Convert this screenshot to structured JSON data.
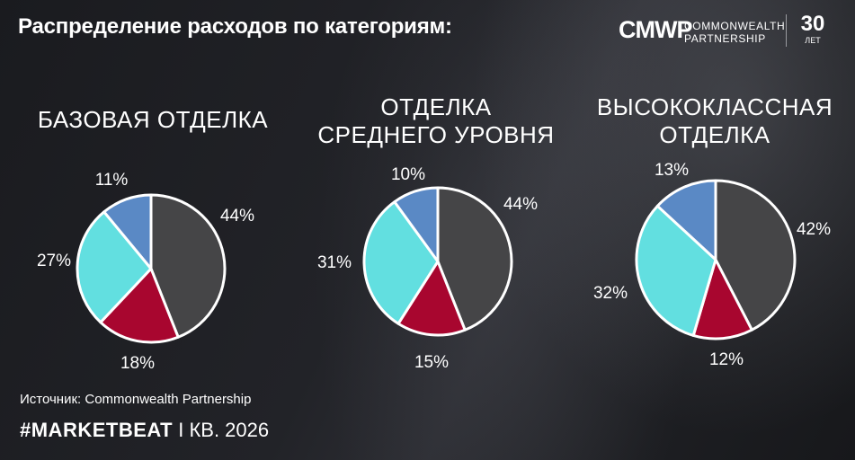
{
  "header": {
    "title": "Распределение расходов по категориям:"
  },
  "logo": {
    "mark": "CMWP",
    "line1": "COMMONWEALTH",
    "line2": "PARTNERSHIP",
    "years_number": "30",
    "years_word": "ЛЕТ"
  },
  "colors": {
    "dark_gray": "#454547",
    "crimson": "#a8062f",
    "cyan": "#62dfe0",
    "steel_blue": "#5a89c5",
    "outline": "#ffffff"
  },
  "chart_data": [
    {
      "type": "pie",
      "title": "БАЗОВАЯ ОТДЕЛКА",
      "values": [
        44,
        18,
        27,
        11
      ],
      "labels": [
        "44%",
        "18%",
        "27%",
        "11%"
      ],
      "colors": [
        "#454547",
        "#a8062f",
        "#62dfe0",
        "#5a89c5"
      ]
    },
    {
      "type": "pie",
      "title": "ОТДЕЛКА\nСРЕДНЕГО УРОВНЯ",
      "values": [
        44,
        15,
        31,
        10
      ],
      "labels": [
        "44%",
        "15%",
        "31%",
        "10%"
      ],
      "colors": [
        "#454547",
        "#a8062f",
        "#62dfe0",
        "#5a89c5"
      ]
    },
    {
      "type": "pie",
      "title": "ВЫСОКОКЛАССНАЯ\nОТДЕЛКА",
      "values": [
        42,
        12,
        32,
        13
      ],
      "labels": [
        "42%",
        "12%",
        "32%",
        "13%"
      ],
      "colors": [
        "#454547",
        "#a8062f",
        "#62dfe0",
        "#5a89c5"
      ]
    }
  ],
  "source": "Источник: Commonwealth Partnership",
  "footer": {
    "brand": "#MARKETBEAT",
    "separator": "I",
    "period": "КВ. 2026"
  }
}
